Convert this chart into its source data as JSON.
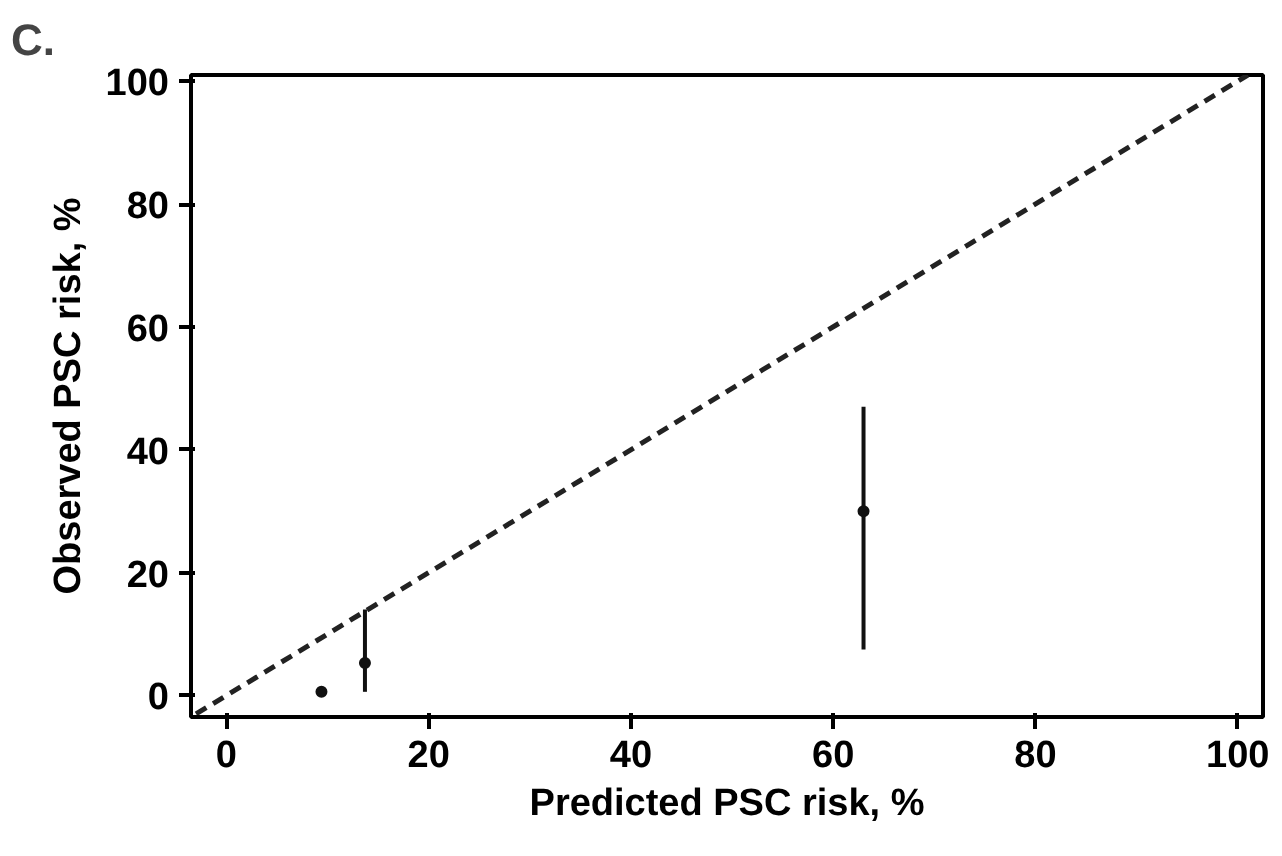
{
  "chart_data": {
    "type": "scatter",
    "xlabel": "Predicted PSC risk, %",
    "ylabel": "Observed PSC risk, %",
    "annotations": [
      "C."
    ],
    "xlim": [
      -3.5,
      102.5
    ],
    "ylim": [
      -3.5,
      101
    ],
    "xticks": [
      0,
      20,
      40,
      60,
      80,
      100
    ],
    "yticks": [
      0,
      20,
      40,
      60,
      80,
      100
    ],
    "grid": false,
    "series": [
      {
        "type": "line",
        "color": "#222222",
        "line_style": "dashed",
        "x": [
          -3,
          101
        ],
        "values": [
          -3,
          101
        ]
      },
      {
        "color": "#111111",
        "marker": "circle",
        "x": [
          9.4,
          13.7,
          63
        ],
        "values": [
          0.6,
          5.3,
          30
        ],
        "errors": [
          null,
          [
            0.6,
            14
          ],
          [
            7.5,
            47
          ]
        ]
      }
    ]
  }
}
